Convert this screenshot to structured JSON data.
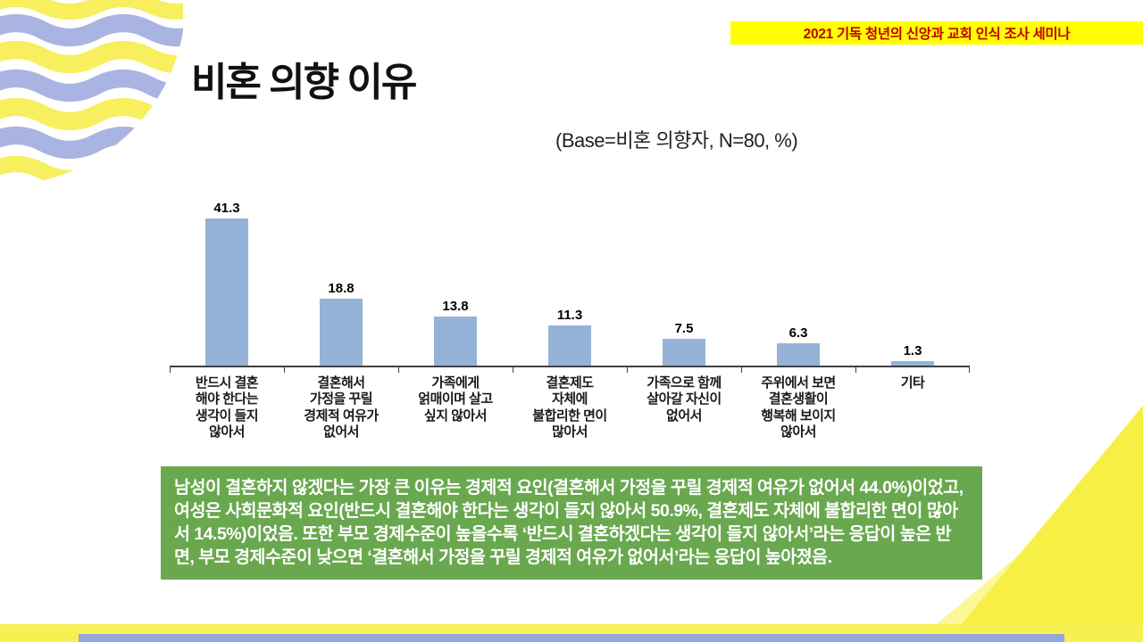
{
  "slide": {
    "banner": "2021 기독 청년의 신앙과 교회 인식 조사 세미나",
    "title": "비혼 의향 이유",
    "base_note": "(Base=비혼 의향자, N=80, %)",
    "summary": "남성이 결혼하지 않겠다는 가장 큰 이유는 경제적 요인(결혼해서 가정을 꾸릴 경제적 여유가 없어서 44.0%)이었고, 여성은 사회문화적 요인(반드시 결혼해야 한다는 생각이 들지 않아서 50.9%, 결혼제도 자체에 불합리한 면이 많아서 14.5%)이었음. 또한 부모 경제수준이 높을수록 ‘반드시 결혼하겠다는 생각이 들지 않아서’라는 응답이 높은 반면, 부모 경제수준이 낮으면 ‘결혼해서 가정을 꾸릴 경제적 여유가 없어서’라는 응답이 높아졌음.",
    "colors": {
      "bar_fill": "#95b3d7",
      "summary_bg": "#69a84f",
      "banner_bg": "#ffff00",
      "banner_text": "#c00000",
      "accent_yellow": "#f8f052",
      "accent_blue": "#96a7db"
    }
  },
  "chart_data": {
    "type": "bar",
    "categories": [
      "반드시 결혼\n해야 한다는\n생각이 들지\n않아서",
      "결혼해서\n가정을 꾸릴\n경제적 여유가\n없어서",
      "가족에게\n얽매이며 살고\n싶지 않아서",
      "결혼제도\n자체에\n불합리한 면이\n많아서",
      "가족으로 함께\n살아갈 자신이\n없어서",
      "주위에서 보면\n결혼생활이\n행복해 보이지\n않아서",
      "기타"
    ],
    "values": [
      41.3,
      18.8,
      13.8,
      11.3,
      7.5,
      6.3,
      1.3
    ],
    "title": "비혼 의향 이유",
    "xlabel": "",
    "ylabel": "%",
    "ylim": [
      0,
      45
    ],
    "grid": false,
    "legend": false,
    "data_labels": true,
    "base_note": "Base=비혼 의향자, N=80, %"
  }
}
